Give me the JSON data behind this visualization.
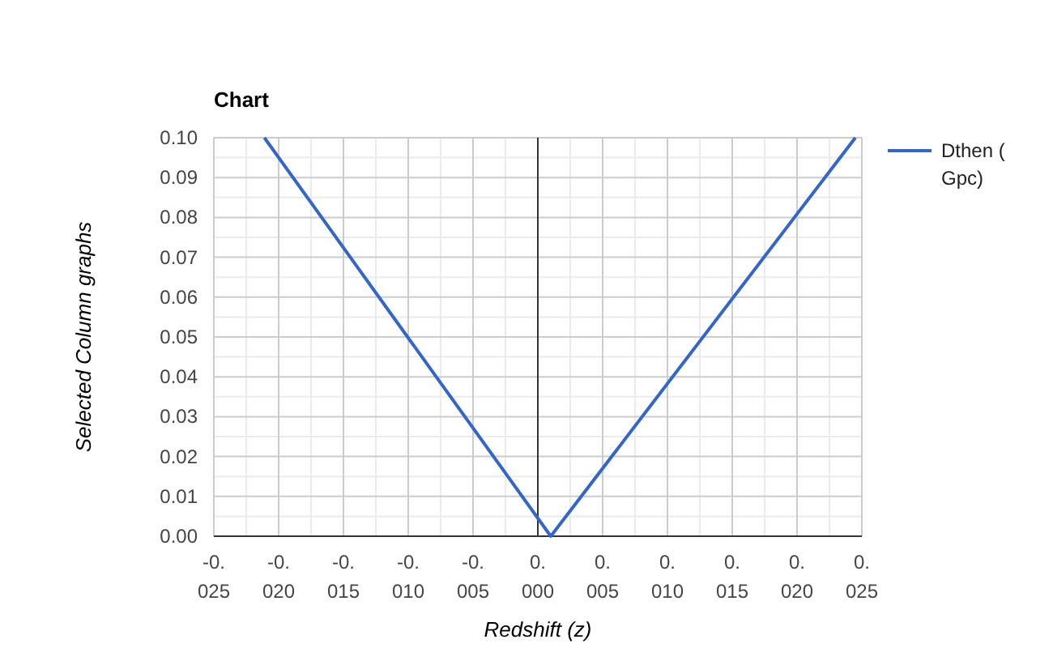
{
  "chart_data": {
    "type": "line",
    "title": "Chart",
    "xlabel": "Redshift (z)",
    "ylabel": "Selected Column graphs",
    "series": [
      {
        "name": "Dthen ( Gpc)",
        "color": "#3366cc",
        "x": [
          -0.0211,
          0.001,
          0.0245
        ],
        "values": [
          0.1,
          0,
          0.1
        ]
      }
    ],
    "xlim": [
      -0.025,
      0.025
    ],
    "xticks": [
      {
        "value": -0.025,
        "label": "-0.025"
      },
      {
        "value": -0.02,
        "label": "-0.020"
      },
      {
        "value": -0.015,
        "label": "-0.015"
      },
      {
        "value": -0.01,
        "label": "-0.010"
      },
      {
        "value": -0.005,
        "label": "-0.005"
      },
      {
        "value": 0,
        "label": "0.000"
      },
      {
        "value": 0.005,
        "label": "0.005"
      },
      {
        "value": 0.01,
        "label": "0.010"
      },
      {
        "value": 0.015,
        "label": "0.015"
      },
      {
        "value": 0.02,
        "label": "0.020"
      },
      {
        "value": 0.025,
        "label": "0.025"
      }
    ],
    "ylim": [
      0,
      0.1
    ],
    "yticks": [
      {
        "value": 0,
        "label": "0.00"
      },
      {
        "value": 0.01,
        "label": "0.01"
      },
      {
        "value": 0.02,
        "label": "0.02"
      },
      {
        "value": 0.03,
        "label": "0.03"
      },
      {
        "value": 0.04,
        "label": "0.04"
      },
      {
        "value": 0.05,
        "label": "0.05"
      },
      {
        "value": 0.06,
        "label": "0.06"
      },
      {
        "value": 0.07,
        "label": "0.07"
      },
      {
        "value": 0.08,
        "label": "0.08"
      },
      {
        "value": 0.09,
        "label": "0.09"
      },
      {
        "value": 0.1,
        "label": "0.10"
      }
    ],
    "grid": true,
    "legend": "right",
    "marker": "none",
    "line_style": "solid"
  }
}
